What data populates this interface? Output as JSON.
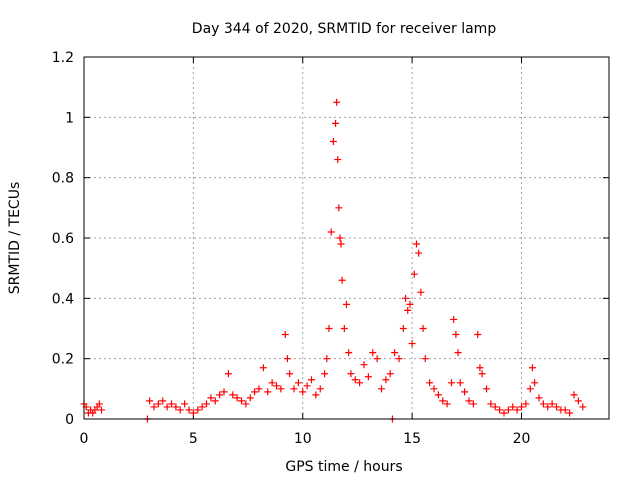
{
  "chart_data": {
    "type": "scatter",
    "title": "Day 344 of 2020, SRMTID for receiver lamp",
    "xlabel": "GPS time / hours",
    "ylabel": "SRMTID / TECUs",
    "xlim": [
      0,
      24
    ],
    "ylim": [
      0,
      1.2
    ],
    "x_ticks": [
      0,
      5,
      10,
      15,
      20
    ],
    "x_tick_labels": [
      "0",
      "5",
      "10",
      "15",
      "20"
    ],
    "y_ticks": [
      0,
      0.2,
      0.4,
      0.6,
      0.8,
      1.0,
      1.2
    ],
    "y_tick_labels": [
      "0",
      "0.2",
      "0.4",
      "0.6",
      "0.8",
      "1",
      "1.2"
    ],
    "grid": true,
    "marker": "plus",
    "marker_color": "#ff0000",
    "series": [
      {
        "name": "lamp",
        "x": [
          0.0,
          0.1,
          0.2,
          0.3,
          0.4,
          0.5,
          0.6,
          0.7,
          0.8,
          2.9,
          3.0,
          3.2,
          3.4,
          3.6,
          3.8,
          4.0,
          4.2,
          4.4,
          4.6,
          4.8,
          5.0,
          5.2,
          5.4,
          5.6,
          5.8,
          6.0,
          6.2,
          6.4,
          6.6,
          6.8,
          7.0,
          7.2,
          7.4,
          7.6,
          7.8,
          8.0,
          8.2,
          8.4,
          8.6,
          8.8,
          9.0,
          9.2,
          9.3,
          9.4,
          9.6,
          9.8,
          10.0,
          10.2,
          10.4,
          10.6,
          10.8,
          11.0,
          11.1,
          11.2,
          11.3,
          11.4,
          11.5,
          11.55,
          11.6,
          11.65,
          11.7,
          11.75,
          11.8,
          11.9,
          12.0,
          12.1,
          12.2,
          12.4,
          12.6,
          12.8,
          13.0,
          13.2,
          13.4,
          13.6,
          13.8,
          14.0,
          14.2,
          14.4,
          14.6,
          14.7,
          14.8,
          14.9,
          15.0,
          15.1,
          15.2,
          15.3,
          15.4,
          15.5,
          15.6,
          15.8,
          16.0,
          16.2,
          16.4,
          16.6,
          16.8,
          16.9,
          17.0,
          17.1,
          17.2,
          17.4,
          17.6,
          17.8,
          18.0,
          18.1,
          18.2,
          18.4,
          18.6,
          18.8,
          19.0,
          19.2,
          19.4,
          19.6,
          19.8,
          20.0,
          20.2,
          20.4,
          20.5,
          20.6,
          20.8,
          21.0,
          21.2,
          21.4,
          21.6,
          21.8,
          22.0,
          22.2,
          22.4,
          22.6,
          22.8,
          14.1
        ],
        "y": [
          0.05,
          0.04,
          0.02,
          0.03,
          0.02,
          0.03,
          0.04,
          0.05,
          0.03,
          0.0,
          0.06,
          0.04,
          0.05,
          0.06,
          0.04,
          0.05,
          0.04,
          0.03,
          0.05,
          0.03,
          0.02,
          0.03,
          0.04,
          0.05,
          0.07,
          0.06,
          0.08,
          0.09,
          0.15,
          0.08,
          0.07,
          0.06,
          0.05,
          0.07,
          0.09,
          0.1,
          0.17,
          0.09,
          0.12,
          0.11,
          0.1,
          0.28,
          0.2,
          0.15,
          0.1,
          0.12,
          0.09,
          0.11,
          0.13,
          0.08,
          0.1,
          0.15,
          0.2,
          0.3,
          0.62,
          0.92,
          0.98,
          1.05,
          0.86,
          0.7,
          0.6,
          0.58,
          0.46,
          0.3,
          0.38,
          0.22,
          0.15,
          0.13,
          0.12,
          0.18,
          0.14,
          0.22,
          0.2,
          0.1,
          0.13,
          0.15,
          0.22,
          0.2,
          0.3,
          0.4,
          0.36,
          0.38,
          0.25,
          0.48,
          0.58,
          0.55,
          0.42,
          0.3,
          0.2,
          0.12,
          0.1,
          0.08,
          0.06,
          0.05,
          0.12,
          0.33,
          0.28,
          0.22,
          0.12,
          0.09,
          0.06,
          0.05,
          0.28,
          0.17,
          0.15,
          0.1,
          0.05,
          0.04,
          0.03,
          0.02,
          0.03,
          0.04,
          0.03,
          0.04,
          0.05,
          0.1,
          0.17,
          0.12,
          0.07,
          0.05,
          0.04,
          0.05,
          0.04,
          0.03,
          0.03,
          0.02,
          0.08,
          0.06,
          0.04,
          0.0
        ]
      }
    ]
  }
}
